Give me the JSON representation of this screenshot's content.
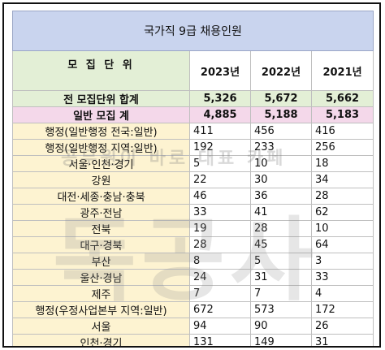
{
  "table": {
    "title": "국가직 9급 채용인원",
    "unit_label": "모 집 단 위",
    "years": [
      "2023년",
      "2022년",
      "2021년"
    ],
    "total": {
      "label": "전 모집단위 합계",
      "values": [
        "5,326",
        "5,672",
        "5,662"
      ]
    },
    "general": {
      "label": "일반 모집 계",
      "values": [
        "4,885",
        "5,188",
        "5,183"
      ]
    },
    "rows": [
      {
        "label": "행정(일반행정 전국:일반)",
        "values": [
          "411",
          "456",
          "416"
        ]
      },
      {
        "label": "행정(일반행정 지역:일반)",
        "values": [
          "192",
          "233",
          "256"
        ]
      },
      {
        "label": "서울·인천·경기",
        "values": [
          "5",
          "10",
          "18"
        ]
      },
      {
        "label": "강원",
        "values": [
          "22",
          "30",
          "34"
        ]
      },
      {
        "label": "대전·세종·충남·충북",
        "values": [
          "46",
          "36",
          "28"
        ]
      },
      {
        "label": "광주·전남",
        "values": [
          "33",
          "41",
          "62"
        ]
      },
      {
        "label": "전북",
        "values": [
          "19",
          "28",
          "10"
        ]
      },
      {
        "label": "대구·경북",
        "values": [
          "28",
          "45",
          "64"
        ]
      },
      {
        "label": "부산",
        "values": [
          "8",
          "5",
          "3"
        ]
      },
      {
        "label": "울산·경남",
        "values": [
          "24",
          "31",
          "33"
        ]
      },
      {
        "label": "제주",
        "values": [
          "7",
          "7",
          "4"
        ]
      },
      {
        "label": "행정(우정사업본부 지역:일반)",
        "values": [
          "672",
          "573",
          "172"
        ]
      },
      {
        "label": "서울",
        "values": [
          "94",
          "90",
          "26"
        ]
      },
      {
        "label": "인천·경기",
        "values": [
          "131",
          "149",
          "31"
        ]
      }
    ]
  },
  "watermark": {
    "small": "공무원이 바로 대표 카페",
    "large": "독공사"
  }
}
